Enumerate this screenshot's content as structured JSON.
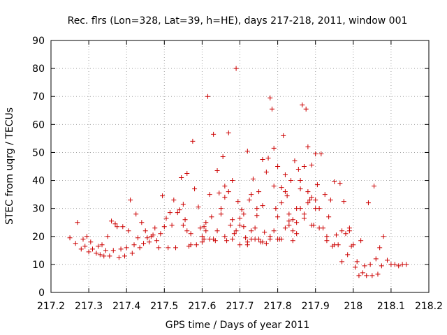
{
  "chart_data": {
    "type": "scatter",
    "title": "Rec. flrs (Lon=328, Lat=39, h=HE), days 217-218, 2011, window 001",
    "xlabel": "GPS time / Days of year 2011",
    "ylabel": "STEC from uqrg / TECUs",
    "xlim": [
      217.2,
      218.2
    ],
    "ylim": [
      0,
      90
    ],
    "xticks": [
      "217.2",
      "217.3",
      "217.4",
      "217.5",
      "217.6",
      "217.7",
      "217.8",
      "217.9",
      "218",
      "218.1",
      "218.2"
    ],
    "yticks": [
      "0",
      "10",
      "20",
      "30",
      "40",
      "50",
      "60",
      "70",
      "80",
      "90"
    ],
    "grid": true,
    "marker": "+",
    "color": "#cc0000",
    "points": [
      [
        217.25,
        19.5
      ],
      [
        217.265,
        17.5
      ],
      [
        217.27,
        25
      ],
      [
        217.28,
        15.5
      ],
      [
        217.285,
        19
      ],
      [
        217.29,
        16.5
      ],
      [
        217.295,
        20
      ],
      [
        217.3,
        14.5
      ],
      [
        217.305,
        18
      ],
      [
        217.31,
        15.5
      ],
      [
        217.32,
        14
      ],
      [
        217.325,
        16.5
      ],
      [
        217.33,
        13.5
      ],
      [
        217.335,
        17
      ],
      [
        217.34,
        13
      ],
      [
        217.345,
        15
      ],
      [
        217.35,
        20
      ],
      [
        217.355,
        13
      ],
      [
        217.36,
        25.5
      ],
      [
        217.365,
        15
      ],
      [
        217.37,
        24.5
      ],
      [
        217.375,
        23.5
      ],
      [
        217.38,
        12.5
      ],
      [
        217.385,
        15.5
      ],
      [
        217.39,
        23.5
      ],
      [
        217.395,
        13
      ],
      [
        217.4,
        16
      ],
      [
        217.405,
        22
      ],
      [
        217.41,
        33
      ],
      [
        217.415,
        14
      ],
      [
        217.42,
        17
      ],
      [
        217.425,
        28
      ],
      [
        217.43,
        19.5
      ],
      [
        217.435,
        16
      ],
      [
        217.44,
        25
      ],
      [
        217.445,
        17.5
      ],
      [
        217.45,
        22
      ],
      [
        217.455,
        19.5
      ],
      [
        217.46,
        18
      ],
      [
        217.465,
        20
      ],
      [
        217.47,
        20.5
      ],
      [
        217.475,
        23
      ],
      [
        217.48,
        18.5
      ],
      [
        217.485,
        16
      ],
      [
        217.49,
        21
      ],
      [
        217.495,
        34.5
      ],
      [
        217.5,
        23.5
      ],
      [
        217.505,
        26.5
      ],
      [
        217.51,
        16
      ],
      [
        217.515,
        28.5
      ],
      [
        217.52,
        24
      ],
      [
        217.525,
        33
      ],
      [
        217.53,
        16
      ],
      [
        217.535,
        28.5
      ],
      [
        217.54,
        29.5
      ],
      [
        217.545,
        41
      ],
      [
        217.55,
        31.5
      ],
      [
        217.555,
        26
      ],
      [
        217.56,
        42.5
      ],
      [
        217.565,
        16.5
      ],
      [
        217.57,
        21
      ],
      [
        217.575,
        54
      ],
      [
        217.58,
        37
      ],
      [
        217.585,
        17
      ],
      [
        217.59,
        30.5
      ],
      [
        217.595,
        23
      ],
      [
        217.6,
        18
      ],
      [
        217.605,
        23.5
      ],
      [
        217.61,
        22
      ],
      [
        217.615,
        70
      ],
      [
        217.62,
        19
      ],
      [
        217.625,
        27
      ],
      [
        217.63,
        56.5
      ],
      [
        217.635,
        18.5
      ],
      [
        217.64,
        43.5
      ],
      [
        217.645,
        35.5
      ],
      [
        217.65,
        30
      ],
      [
        217.655,
        48.5
      ],
      [
        217.66,
        38
      ],
      [
        217.665,
        18.5
      ],
      [
        217.67,
        57
      ],
      [
        217.675,
        24
      ],
      [
        217.68,
        40
      ],
      [
        217.685,
        21
      ],
      [
        217.69,
        80
      ],
      [
        217.695,
        32.5
      ],
      [
        217.7,
        26.5
      ],
      [
        217.705,
        29.5
      ],
      [
        217.71,
        23.5
      ],
      [
        217.715,
        19.5
      ],
      [
        217.72,
        50.5
      ],
      [
        217.725,
        33
      ],
      [
        217.73,
        22
      ],
      [
        217.735,
        40.5
      ],
      [
        217.74,
        19
      ],
      [
        217.745,
        27.5
      ],
      [
        217.75,
        36
      ],
      [
        217.755,
        18
      ],
      [
        217.76,
        47.5
      ],
      [
        217.765,
        21.5
      ],
      [
        217.77,
        17.5
      ],
      [
        217.775,
        48
      ],
      [
        217.78,
        69.5
      ],
      [
        217.785,
        65.5
      ],
      [
        217.79,
        51.5
      ],
      [
        217.795,
        30
      ],
      [
        217.8,
        45
      ],
      [
        217.805,
        19
      ],
      [
        217.81,
        37.5
      ],
      [
        217.815,
        56
      ],
      [
        217.82,
        42
      ],
      [
        217.825,
        34.5
      ],
      [
        217.83,
        25.5
      ],
      [
        217.835,
        40
      ],
      [
        217.84,
        18.5
      ],
      [
        217.845,
        47
      ],
      [
        217.85,
        21
      ],
      [
        217.855,
        44
      ],
      [
        217.86,
        37
      ],
      [
        217.865,
        67
      ],
      [
        217.87,
        26.5
      ],
      [
        217.875,
        65.5
      ],
      [
        217.88,
        52
      ],
      [
        217.885,
        33
      ],
      [
        217.89,
        45.5
      ],
      [
        217.895,
        24
      ],
      [
        217.9,
        49.5
      ],
      [
        217.905,
        38.5
      ],
      [
        217.91,
        30
      ],
      [
        217.915,
        49.5
      ],
      [
        217.92,
        23
      ],
      [
        217.925,
        35
      ],
      [
        217.93,
        18.5
      ],
      [
        217.935,
        27
      ],
      [
        217.94,
        33
      ],
      [
        217.945,
        16.5
      ],
      [
        217.95,
        39.5
      ],
      [
        217.955,
        20.5
      ],
      [
        217.96,
        17
      ],
      [
        217.965,
        39
      ],
      [
        217.97,
        11
      ],
      [
        217.975,
        32.5
      ],
      [
        217.98,
        21
      ],
      [
        217.985,
        13.5
      ],
      [
        217.99,
        22
      ],
      [
        217.995,
        16.5
      ],
      [
        218.0,
        17
      ],
      [
        218.005,
        9
      ],
      [
        218.01,
        11
      ],
      [
        218.015,
        6
      ],
      [
        218.02,
        18.5
      ],
      [
        218.025,
        7
      ],
      [
        218.03,
        9.5
      ],
      [
        218.035,
        6
      ],
      [
        218.04,
        32
      ],
      [
        218.045,
        10
      ],
      [
        218.05,
        6
      ],
      [
        218.055,
        38
      ],
      [
        218.06,
        12
      ],
      [
        218.065,
        6.5
      ],
      [
        218.07,
        16
      ],
      [
        218.075,
        9.5
      ],
      [
        218.08,
        20
      ],
      [
        218.09,
        11.5
      ],
      [
        218.1,
        10
      ],
      [
        218.11,
        10
      ],
      [
        218.12,
        9.5
      ],
      [
        218.13,
        10
      ],
      [
        218.14,
        10
      ],
      [
        217.605,
        19
      ],
      [
        217.62,
        35
      ],
      [
        217.66,
        34
      ],
      [
        217.7,
        24
      ],
      [
        217.71,
        28
      ],
      [
        217.73,
        35
      ],
      [
        217.745,
        30
      ],
      [
        217.76,
        31
      ],
      [
        217.77,
        43
      ],
      [
        217.79,
        38
      ],
      [
        217.8,
        27
      ],
      [
        217.81,
        32
      ],
      [
        217.82,
        36
      ],
      [
        217.83,
        28
      ],
      [
        217.84,
        22
      ],
      [
        217.85,
        30
      ],
      [
        217.86,
        40
      ],
      [
        217.87,
        45
      ],
      [
        217.88,
        36
      ],
      [
        217.89,
        24
      ],
      [
        217.64,
        22
      ],
      [
        217.65,
        28
      ],
      [
        217.67,
        36
      ],
      [
        217.68,
        26
      ],
      [
        217.69,
        22
      ],
      [
        217.72,
        18
      ],
      [
        217.74,
        23
      ],
      [
        217.75,
        19
      ],
      [
        217.78,
        20
      ],
      [
        217.8,
        19
      ],
      [
        217.82,
        23
      ],
      [
        217.84,
        26
      ],
      [
        217.86,
        30
      ],
      [
        217.88,
        32
      ],
      [
        217.9,
        30
      ],
      [
        217.91,
        23
      ],
      [
        217.93,
        20
      ],
      [
        217.95,
        17
      ],
      [
        217.97,
        22
      ],
      [
        217.99,
        23
      ],
      [
        217.55,
        24
      ],
      [
        217.56,
        22
      ],
      [
        217.57,
        17
      ],
      [
        217.6,
        20
      ],
      [
        217.61,
        25
      ],
      [
        217.63,
        19
      ],
      [
        217.66,
        20
      ],
      [
        217.68,
        19
      ],
      [
        217.7,
        17
      ],
      [
        217.72,
        17
      ],
      [
        217.73,
        19
      ],
      [
        217.76,
        18
      ],
      [
        217.78,
        19
      ],
      [
        217.79,
        22
      ],
      [
        217.81,
        19
      ],
      [
        217.83,
        24
      ],
      [
        217.85,
        25
      ],
      [
        217.87,
        28
      ],
      [
        217.89,
        34
      ],
      [
        217.9,
        33
      ]
    ]
  }
}
